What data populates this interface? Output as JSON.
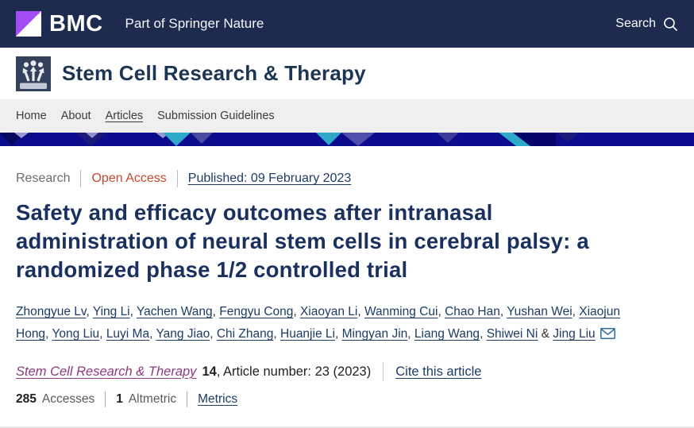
{
  "brand": {
    "logo_text": "BMC",
    "tagline": "Part of Springer Nature",
    "search_label": "Search",
    "colors": {
      "topbar": "#1d2c4e",
      "logo_purple": "#a24df7"
    }
  },
  "journal": {
    "name": "Stem Cell Research & Therapy"
  },
  "nav": {
    "items": [
      "Home",
      "About",
      "Articles",
      "Submission Guidelines"
    ],
    "active": "Articles"
  },
  "banner_colors": {
    "base": "#0c0c8f",
    "teal": "#2fa9c9",
    "purple": "#4c4caa",
    "dark": "#08085e",
    "lavender": "#9a9ad0"
  },
  "article": {
    "type": "Research",
    "access": "Open Access",
    "access_color": "#c6492f",
    "published": "Published: 09 February 2023",
    "title": "Safety and efficacy outcomes after intranasal administration of neural stem cells in cerebral palsy: a randomized phase 1/2 controlled trial"
  },
  "authors": {
    "names": [
      "Zhongyue Lv",
      "Ying Li",
      "Yachen Wang",
      "Fengyu Cong",
      "Xiaoyan Li",
      "Wanming Cui",
      "Chao Han",
      "Yushan Wei",
      "Xiaojun Hong",
      "Yong Liu",
      "Luyi Ma",
      "Yang Jiao",
      "Chi Zhang",
      "Huanjie Li",
      "Mingyan Jin",
      "Liang Wang",
      "Shiwei Ni",
      "Jing Liu"
    ],
    "separator": ", ",
    "separator_last": " & ",
    "corresponding": "Jing Liu"
  },
  "citation": {
    "journal": "Stem Cell Research & Therapy",
    "volume": "14",
    "article_number_text": ", Article number: 23 (2023)",
    "cite_link": "Cite this article"
  },
  "metrics": {
    "accesses_value": "285",
    "accesses_label": "Accesses",
    "altmetric_value": "1",
    "altmetric_label": "Altmetric",
    "metrics_link": "Metrics"
  }
}
